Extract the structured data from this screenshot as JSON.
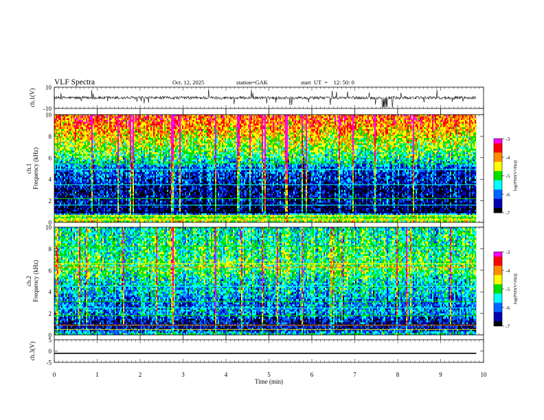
{
  "header": {
    "title": "VLF  Spectra",
    "date": "Oct. 12, 2025",
    "station": "station=GAK",
    "start": "start  UT  =    12: 50: 0"
  },
  "colorbar": {
    "label": "log(PSD(V²/Hz))",
    "ticks": [
      -3,
      -4,
      -5,
      -6,
      -7
    ],
    "colors": [
      "#ff00ff",
      "#ff0000",
      "#ff8c00",
      "#ffff00",
      "#00e000",
      "#00ffff",
      "#0064ff",
      "#0000b0",
      "#000000"
    ]
  },
  "chart_data": [
    {
      "type": "line",
      "name": "ch1-waveform",
      "ylabel": "ch.1(V)",
      "ylim": [
        -10,
        10
      ],
      "yticks": [
        10,
        -10
      ],
      "description_values": {
        "baseline": 0,
        "noise_amplitude": 2,
        "burst_peak": 10
      }
    },
    {
      "type": "heatmap",
      "name": "ch1-spectrogram",
      "ylabel": "ch.1\nFrequency  (kHz)",
      "xlim": [
        0,
        10
      ],
      "ylim": [
        0,
        10
      ],
      "yticks": [
        0,
        2,
        4,
        6,
        8,
        10
      ],
      "zlim": [
        -7,
        -3
      ],
      "xdata_end": 9.83,
      "profile": [
        {
          "f": 0.0,
          "v": -4.8
        },
        {
          "f": 0.3,
          "v": -4.6
        },
        {
          "f": 0.6,
          "v": -4.9
        },
        {
          "f": 0.9,
          "v": -6.8
        },
        {
          "f": 1.2,
          "v": -6.8
        },
        {
          "f": 2.0,
          "v": -6.5
        },
        {
          "f": 3.0,
          "v": -6.6
        },
        {
          "f": 4.0,
          "v": -6.3
        },
        {
          "f": 5.0,
          "v": -6.0
        },
        {
          "f": 6.0,
          "v": -5.2
        },
        {
          "f": 7.0,
          "v": -4.8
        },
        {
          "f": 8.0,
          "v": -4.4
        },
        {
          "f": 9.0,
          "v": -4.0
        },
        {
          "f": 10.0,
          "v": -3.8
        }
      ]
    },
    {
      "type": "heatmap",
      "name": "ch2-spectrogram",
      "ylabel": "ch.2\nFrequency  (kHz)",
      "xlim": [
        0,
        10
      ],
      "ylim": [
        0,
        10
      ],
      "yticks": [
        0,
        2,
        4,
        6,
        8,
        10
      ],
      "zlim": [
        -7,
        -3
      ],
      "xdata_end": 9.83,
      "profile": [
        {
          "f": 0.0,
          "v": -5.2
        },
        {
          "f": 0.5,
          "v": -6.5
        },
        {
          "f": 1.0,
          "v": -6.6
        },
        {
          "f": 1.5,
          "v": -6.3
        },
        {
          "f": 2.0,
          "v": -5.8
        },
        {
          "f": 3.0,
          "v": -6.0
        },
        {
          "f": 4.0,
          "v": -5.6
        },
        {
          "f": 5.0,
          "v": -5.5
        },
        {
          "f": 6.0,
          "v": -5.0
        },
        {
          "f": 7.0,
          "v": -5.1
        },
        {
          "f": 8.0,
          "v": -5.2
        },
        {
          "f": 9.0,
          "v": -5.3
        },
        {
          "f": 10.0,
          "v": -5.4
        }
      ]
    },
    {
      "type": "line",
      "name": "ch3-waveform",
      "ylabel": "ch.3(V)",
      "ylim": [
        -5,
        5
      ],
      "yticks": [
        5,
        0,
        -5
      ],
      "description_values": {
        "baseline": -1,
        "band_halfwidth": 0.25
      }
    }
  ],
  "xaxis": {
    "label": "Time  (min)",
    "ticks": [
      0,
      1,
      2,
      3,
      4,
      5,
      6,
      7,
      8,
      9,
      10
    ],
    "xlim": [
      0,
      10
    ]
  }
}
